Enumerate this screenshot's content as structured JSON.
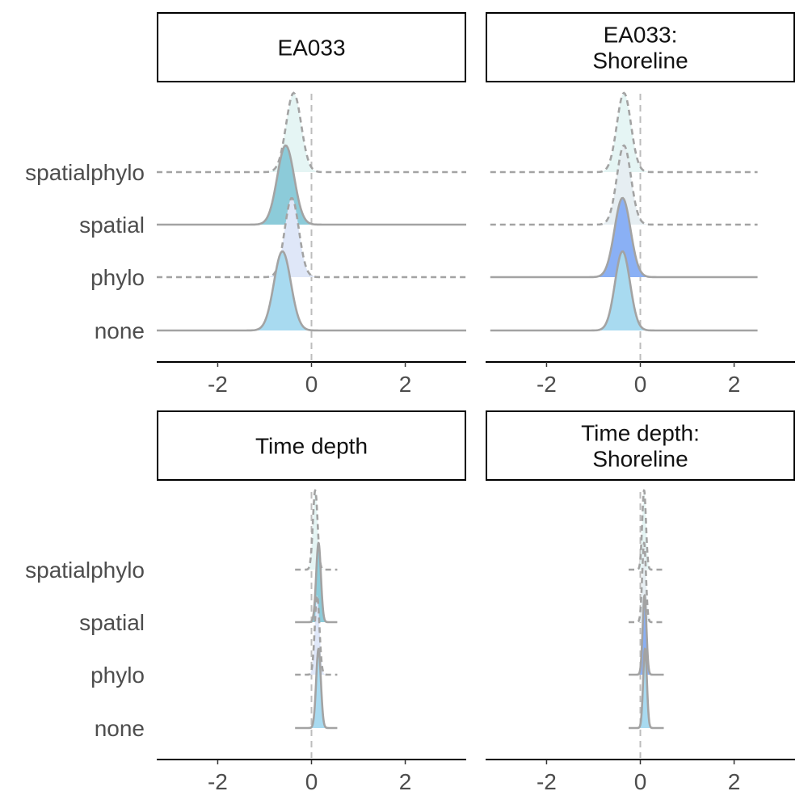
{
  "chart_data": {
    "type": "ridgeline",
    "xlim": [
      -3.3,
      3.3
    ],
    "x_ticks": [
      "-2",
      "0",
      "2"
    ],
    "x_tick_values": [
      -2,
      0,
      2
    ],
    "reference_line": 0,
    "categories": [
      "spatialphylo",
      "spatial",
      "phylo",
      "none"
    ],
    "panels": [
      {
        "title": "EA033",
        "ridges": [
          {
            "category": "spatialphylo",
            "mean": -0.38,
            "sd": 0.16,
            "fill": "#e5f5f4",
            "dashed": true,
            "x_range": [
              -3.3,
              3.3
            ]
          },
          {
            "category": "spatial",
            "mean": -0.55,
            "sd": 0.18,
            "fill": "#8ccbd9",
            "dashed": false,
            "x_range": [
              -3.3,
              3.3
            ]
          },
          {
            "category": "phylo",
            "mean": -0.42,
            "sd": 0.15,
            "fill": "#dfe7f8",
            "dashed": true,
            "x_range": [
              -3.3,
              3.3
            ]
          },
          {
            "category": "none",
            "mean": -0.62,
            "sd": 0.18,
            "fill": "#a8daf0",
            "dashed": false,
            "x_range": [
              -3.3,
              3.3
            ]
          }
        ]
      },
      {
        "title": "EA033:\nShoreline",
        "ridges": [
          {
            "category": "spatialphylo",
            "mean": -0.35,
            "sd": 0.15,
            "fill": "#e5f5f4",
            "dashed": true,
            "x_range": [
              -3.2,
              2.5
            ]
          },
          {
            "category": "spatial",
            "mean": -0.35,
            "sd": 0.15,
            "fill": "#e6eef2",
            "dashed": true,
            "x_range": [
              -3.2,
              2.5
            ]
          },
          {
            "category": "phylo",
            "mean": -0.38,
            "sd": 0.17,
            "fill": "#8ab0f5",
            "dashed": false,
            "x_range": [
              -3.2,
              2.5
            ]
          },
          {
            "category": "none",
            "mean": -0.38,
            "sd": 0.16,
            "fill": "#a8daf0",
            "dashed": false,
            "x_range": [
              -3.2,
              2.5
            ]
          }
        ]
      },
      {
        "title": "Time depth",
        "ridges": [
          {
            "category": "spatialphylo",
            "mean": 0.08,
            "sd": 0.05,
            "fill": "#e5f5f4",
            "dashed": true,
            "x_range": [
              -0.35,
              0.55
            ]
          },
          {
            "category": "spatial",
            "mean": 0.15,
            "sd": 0.05,
            "fill": "#8ccbd9",
            "dashed": false,
            "x_range": [
              -0.35,
              0.55
            ]
          },
          {
            "category": "phylo",
            "mean": 0.12,
            "sd": 0.05,
            "fill": "#dfe7f8",
            "dashed": true,
            "x_range": [
              -0.35,
              0.55
            ]
          },
          {
            "category": "none",
            "mean": 0.15,
            "sd": 0.05,
            "fill": "#a8daf0",
            "dashed": false,
            "x_range": [
              -0.35,
              0.55
            ]
          }
        ]
      },
      {
        "title": "Time depth:\nShoreline",
        "ridges": [
          {
            "category": "spatialphylo",
            "mean": 0.08,
            "sd": 0.04,
            "fill": "#e5f5f4",
            "dashed": true,
            "x_range": [
              -0.25,
              0.5
            ]
          },
          {
            "category": "spatial",
            "mean": 0.08,
            "sd": 0.04,
            "fill": "#e6eef2",
            "dashed": true,
            "x_range": [
              -0.25,
              0.5
            ]
          },
          {
            "category": "phylo",
            "mean": 0.09,
            "sd": 0.04,
            "fill": "#8ab0f5",
            "dashed": false,
            "x_range": [
              -0.25,
              0.5
            ]
          },
          {
            "category": "none",
            "mean": 0.1,
            "sd": 0.04,
            "fill": "#a8daf0",
            "dashed": false,
            "x_range": [
              -0.25,
              0.5
            ]
          }
        ]
      }
    ],
    "colors": {
      "outline": "#a3a3a3",
      "reference_line": "#bdbdbd"
    }
  }
}
